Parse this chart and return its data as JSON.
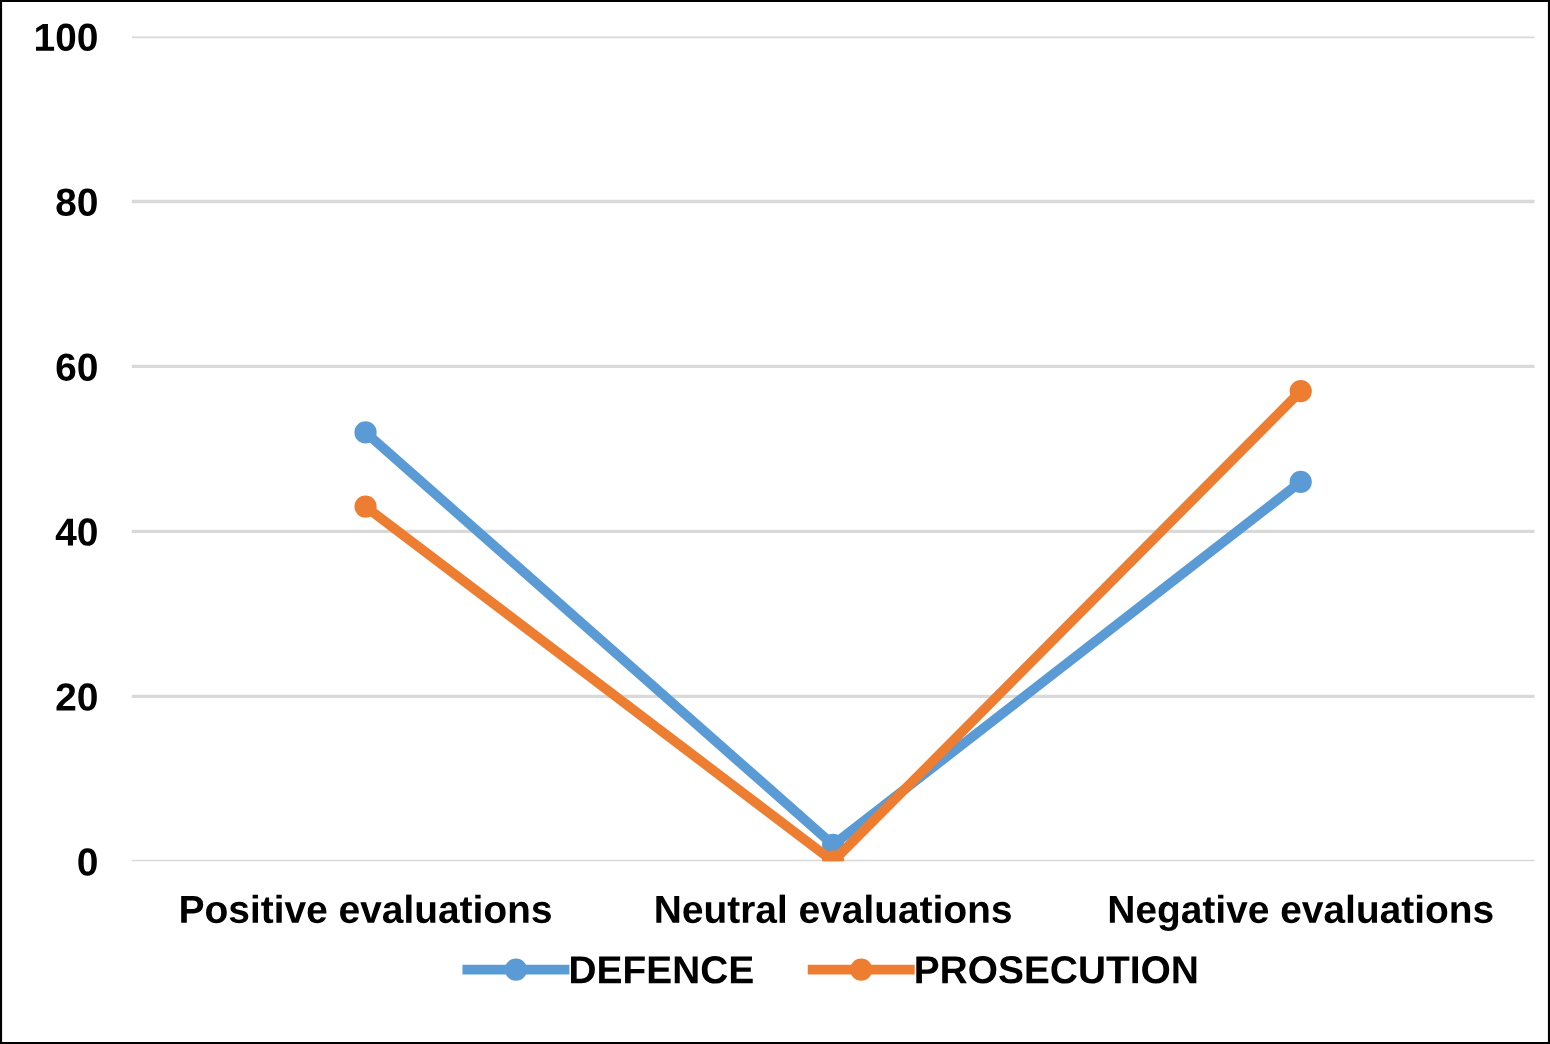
{
  "chart_data": {
    "type": "line",
    "categories": [
      "Positive evaluations",
      "Neutral evaluations",
      "Negative evaluations"
    ],
    "series": [
      {
        "name": "DEFENCE",
        "color": "#5b9bd5",
        "values": [
          52,
          2,
          46
        ]
      },
      {
        "name": "PROSECUTION",
        "color": "#ed7d31",
        "values": [
          43,
          0,
          57
        ]
      }
    ],
    "ylim": [
      0,
      100
    ],
    "yticks": [
      0,
      20,
      40,
      60,
      80,
      100
    ],
    "grid": "y",
    "legend": "bottom",
    "marker": "circle",
    "line_style": "solid"
  }
}
